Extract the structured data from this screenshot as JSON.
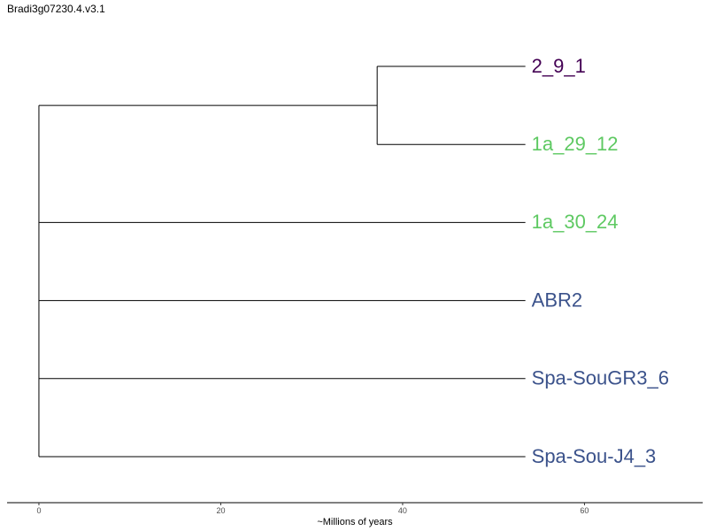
{
  "title": "Bradi3g07230.4.v3.1",
  "colors": {
    "branch": "#000000",
    "purple": "#440154",
    "green": "#5ec962",
    "blue": "#3b528b"
  },
  "tree": {
    "root_x": 0,
    "nodes": [
      {
        "id": "clade-a",
        "x": 37.2,
        "children": [
          "2_9_1",
          "1a_29_12"
        ]
      }
    ],
    "tips": [
      {
        "label": "2_9_1",
        "x": 53.5,
        "parent": "clade-a",
        "color": "#440154"
      },
      {
        "label": "1a_29_12",
        "x": 53.5,
        "parent": "clade-a",
        "color": "#5ec962"
      },
      {
        "label": "1a_30_24",
        "x": 53.5,
        "parent": "root",
        "color": "#5ec962"
      },
      {
        "label": "ABR2",
        "x": 53.5,
        "parent": "root",
        "color": "#3b528b"
      },
      {
        "label": "Spa-SouGR3_6",
        "x": 53.5,
        "parent": "root",
        "color": "#3b528b"
      },
      {
        "label": "Spa-Sou-J4_3",
        "x": 53.5,
        "parent": "root",
        "color": "#3b528b"
      }
    ]
  },
  "axis": {
    "title": "~Millions of years",
    "range": [
      -3.5,
      73
    ],
    "ticks": [
      {
        "value": 0,
        "label": "0"
      },
      {
        "value": 20,
        "label": "20"
      },
      {
        "value": 40,
        "label": "40"
      },
      {
        "value": 60,
        "label": "60"
      }
    ]
  }
}
